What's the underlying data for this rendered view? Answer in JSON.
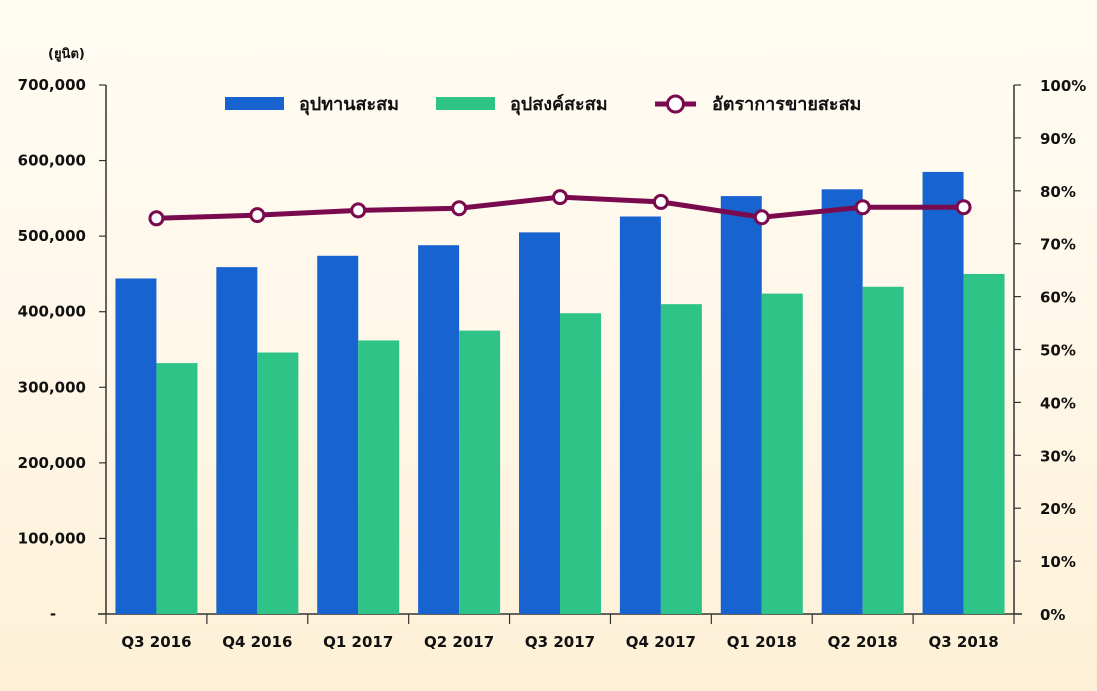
{
  "chart_data": {
    "type": "bar",
    "y_unit": "(ยูนิต)",
    "categories": [
      "Q3 2016",
      "Q4 2016",
      "Q1 2017",
      "Q2 2017",
      "Q3 2017",
      "Q4 2017",
      "Q1 2018",
      "Q2 2018",
      "Q3 2018"
    ],
    "series": [
      {
        "name": "อุปทานสะสม",
        "type": "bar",
        "axis": "left",
        "color": "#1763cf",
        "values": [
          444000,
          459000,
          474000,
          488000,
          505000,
          526000,
          553000,
          562000,
          585000
        ]
      },
      {
        "name": "อุปสงค์สะสม",
        "type": "bar",
        "axis": "left",
        "color": "#2ec488",
        "values": [
          332000,
          346000,
          362000,
          375000,
          398000,
          410000,
          424000,
          433000,
          450000
        ]
      },
      {
        "name": "อัตราการขายสะสม",
        "type": "line",
        "axis": "right",
        "color": "#7a0a4e",
        "values": [
          74.8,
          75.4,
          76.3,
          76.7,
          78.8,
          77.9,
          75.0,
          76.9,
          76.9
        ]
      }
    ],
    "y_left": {
      "min": 0,
      "max": 700000,
      "ticks": [
        "-",
        "100,000",
        "200,000",
        "300,000",
        "400,000",
        "500,000",
        "600,000",
        "700,000"
      ]
    },
    "y_right": {
      "min": 0,
      "max": 100,
      "ticks": [
        "0%",
        "10%",
        "20%",
        "30%",
        "40%",
        "50%",
        "60%",
        "70%",
        "80%",
        "90%",
        "100%"
      ]
    },
    "legend_position": "top-center",
    "grid": false
  }
}
